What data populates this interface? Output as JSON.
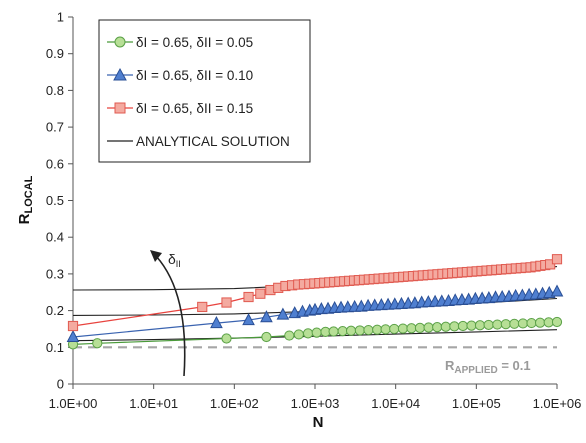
{
  "chart_data": {
    "type": "line",
    "xlabel": "N",
    "ylabel_main": "R",
    "ylabel_sub": "LOCAL",
    "xscale": "log",
    "xlim": [
      1,
      1000000
    ],
    "ylim": [
      0,
      1
    ],
    "x_ticks": [
      "1.0E+00",
      "1.0E+01",
      "1.0E+02",
      "1.0E+03",
      "1.0E+04",
      "1.0E+05",
      "1.0E+06"
    ],
    "y_ticks": [
      "0",
      "0.1",
      "0.2",
      "0.3",
      "0.4",
      "0.5",
      "0.6",
      "0.7",
      "0.8",
      "0.9",
      "1"
    ],
    "grid": false,
    "legend_position": "top-left",
    "series": [
      {
        "name": "δI = 0.65, δII = 0.05",
        "marker": "circle",
        "color": "#4a9a3a",
        "fill": "#b7df96",
        "edge": "#5aa046",
        "x": [
          1,
          2,
          80,
          250,
          480,
          630,
          820,
          1050,
          1350,
          1700,
          2200,
          2800,
          3600,
          4600,
          5900,
          7500,
          9600,
          12300,
          15700,
          20000,
          25600,
          32700,
          41800,
          53400,
          68200,
          87100,
          111000,
          142000,
          182000,
          232000,
          296000,
          378000,
          483000,
          617000,
          789000,
          1000000
        ],
        "y": [
          0.108,
          0.111,
          0.124,
          0.128,
          0.132,
          0.135,
          0.138,
          0.14,
          0.142,
          0.143,
          0.144,
          0.145,
          0.146,
          0.147,
          0.148,
          0.149,
          0.15,
          0.151,
          0.152,
          0.153,
          0.154,
          0.155,
          0.156,
          0.157,
          0.158,
          0.159,
          0.16,
          0.161,
          0.162,
          0.163,
          0.164,
          0.165,
          0.166,
          0.167,
          0.168,
          0.169
        ]
      },
      {
        "name": "δI = 0.65, δII = 0.10",
        "marker": "triangle",
        "color": "#3a63b0",
        "fill": "#4f7fd0",
        "edge": "#2a4f95",
        "x": [
          1,
          60,
          150,
          250,
          400,
          560,
          700,
          860,
          1000,
          1200,
          1450,
          1750,
          2100,
          2550,
          3100,
          3750,
          4550,
          5500,
          6650,
          8050,
          9750,
          11800,
          14300,
          17300,
          21000,
          25400,
          30800,
          37300,
          45200,
          54700,
          66300,
          80300,
          97300,
          118000,
          143000,
          173000,
          209000,
          254000,
          307000,
          372000,
          451000,
          546000,
          662000,
          802000,
          1000000
        ],
        "y": [
          0.128,
          0.166,
          0.174,
          0.182,
          0.189,
          0.193,
          0.197,
          0.2,
          0.202,
          0.204,
          0.205,
          0.207,
          0.208,
          0.209,
          0.21,
          0.211,
          0.213,
          0.214,
          0.215,
          0.216,
          0.217,
          0.218,
          0.219,
          0.22,
          0.222,
          0.223,
          0.224,
          0.225,
          0.226,
          0.228,
          0.229,
          0.23,
          0.232,
          0.233,
          0.234,
          0.236,
          0.237,
          0.238,
          0.24,
          0.241,
          0.243,
          0.244,
          0.246,
          0.248,
          0.252
        ]
      },
      {
        "name": "δI = 0.65, δII = 0.15",
        "marker": "square",
        "color": "#e8433e",
        "fill": "#f4aaa0",
        "edge": "#e05a50",
        "x": [
          1,
          40,
          80,
          150,
          210,
          280,
          350,
          430,
          520,
          620,
          730,
          850,
          980,
          1130,
          1300,
          1500,
          1730,
          2000,
          2300,
          2650,
          3050,
          3500,
          4050,
          4650,
          5350,
          6150,
          7100,
          8150,
          9400,
          10800,
          12400,
          14300,
          16400,
          18900,
          21700,
          25000,
          28700,
          33000,
          38000,
          43700,
          50200,
          57800,
          66400,
          76400,
          87900,
          101000,
          116000,
          134000,
          154000,
          177000,
          203000,
          234000,
          269000,
          309000,
          356000,
          409000,
          470000,
          541000,
          622000,
          715000,
          822000,
          1000000
        ],
        "y": [
          0.158,
          0.21,
          0.222,
          0.237,
          0.246,
          0.256,
          0.262,
          0.267,
          0.269,
          0.271,
          0.272,
          0.273,
          0.274,
          0.275,
          0.276,
          0.277,
          0.278,
          0.279,
          0.28,
          0.281,
          0.282,
          0.283,
          0.284,
          0.285,
          0.286,
          0.287,
          0.288,
          0.289,
          0.29,
          0.291,
          0.292,
          0.293,
          0.294,
          0.295,
          0.296,
          0.297,
          0.298,
          0.299,
          0.3,
          0.301,
          0.302,
          0.303,
          0.304,
          0.305,
          0.306,
          0.307,
          0.308,
          0.309,
          0.31,
          0.311,
          0.312,
          0.313,
          0.314,
          0.315,
          0.316,
          0.317,
          0.318,
          0.32,
          0.322,
          0.324,
          0.326,
          0.34
        ]
      }
    ],
    "analytical": {
      "name": "ANALYTICAL SOLUTION",
      "color": "#222222",
      "curves": [
        {
          "x": [
            1,
            10,
            100,
            1000,
            10000,
            100000,
            1000000
          ],
          "y": [
            0.118,
            0.121,
            0.125,
            0.13,
            0.136,
            0.142,
            0.148
          ]
        },
        {
          "x": [
            1,
            10,
            100,
            1000,
            10000,
            100000,
            1000000
          ],
          "y": [
            0.187,
            0.188,
            0.191,
            0.198,
            0.208,
            0.22,
            0.233
          ]
        },
        {
          "x": [
            1,
            10,
            100,
            1000,
            10000,
            100000,
            1000000
          ],
          "y": [
            0.256,
            0.257,
            0.26,
            0.27,
            0.285,
            0.302,
            0.32
          ]
        }
      ]
    },
    "applied_line": {
      "y": 0.1,
      "color": "#a6a6a6"
    },
    "annotations": {
      "applied_main": "R",
      "applied_sub": "APPLIED",
      "applied_tail": " = 0.1",
      "delta_main": "δ",
      "delta_sub": "II"
    }
  }
}
